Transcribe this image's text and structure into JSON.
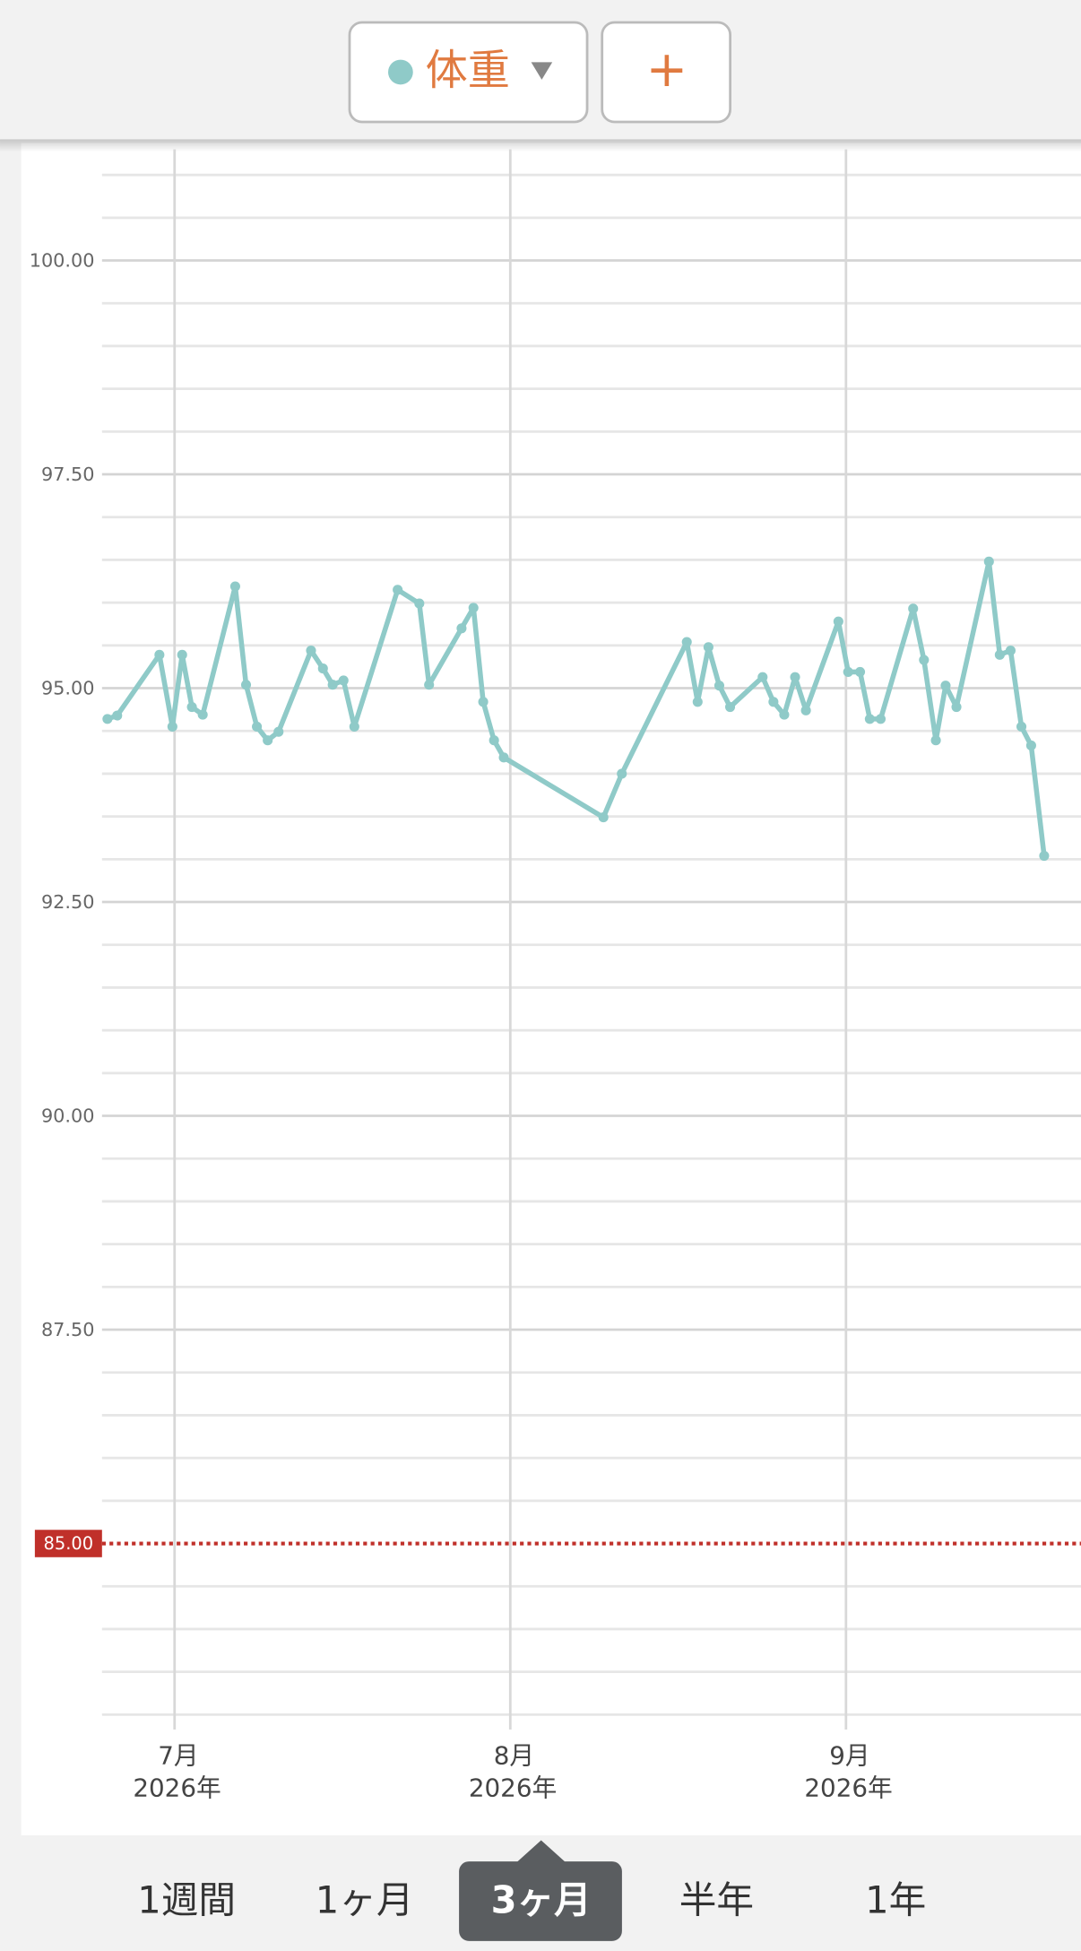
{
  "header": {
    "selector_label": "体重",
    "add_button": "+"
  },
  "chart_data": {
    "type": "line",
    "x": [
      -6.2,
      -5.3,
      -1.4,
      -0.2,
      0.7,
      1.6,
      2.6,
      5.6,
      6.6,
      7.6,
      8.6,
      9.6,
      12.6,
      13.7,
      14.6,
      15.6,
      16.6,
      20.6,
      22.6,
      23.5,
      26.5,
      27.6,
      28.5,
      29.5,
      30.4,
      39.6,
      41.3,
      47.3,
      48.3,
      49.3,
      50.3,
      51.3,
      54.3,
      55.3,
      56.3,
      57.3,
      58.3,
      61.3,
      62.2,
      63.3,
      64.2,
      65.2,
      68.2,
      69.2,
      70.3,
      71.2,
      72.2,
      75.2,
      76.2,
      77.2,
      78.2,
      79.1,
      80.3
    ],
    "series": [
      {
        "name": "体重",
        "color": "#8fcac8",
        "values": [
          94.64,
          94.68,
          95.39,
          94.55,
          95.39,
          94.78,
          94.69,
          96.19,
          95.04,
          94.55,
          94.39,
          94.49,
          95.44,
          95.23,
          95.04,
          95.09,
          94.55,
          96.15,
          95.99,
          95.04,
          95.7,
          95.94,
          94.84,
          94.39,
          94.19,
          93.49,
          94.0,
          95.54,
          94.84,
          95.48,
          95.03,
          94.78,
          95.13,
          94.84,
          94.69,
          95.13,
          94.74,
          95.78,
          95.19,
          95.19,
          94.64,
          94.64,
          95.93,
          95.33,
          94.39,
          95.03,
          94.78,
          96.48,
          95.39,
          95.44,
          94.55,
          94.33,
          93.04
        ]
      }
    ],
    "xlim": [
      -6.7,
      83.7
    ],
    "xticks": [
      {
        "value": 0,
        "label": "7月"
      },
      {
        "value": 31,
        "label": "8月"
      },
      {
        "value": 62,
        "label": "9月"
      }
    ],
    "xtick_years": [
      "2026年",
      "2026年",
      "2026年"
    ],
    "ylim": [
      83,
      101.3
    ],
    "yticks": [
      {
        "value": 87.5,
        "label": "87.50"
      },
      {
        "value": 90,
        "label": "90.00"
      },
      {
        "value": 92.5,
        "label": "92.50"
      },
      {
        "value": 95,
        "label": "95.00"
      },
      {
        "value": 97.5,
        "label": "97.50"
      },
      {
        "value": 100,
        "label": "100.00"
      }
    ],
    "minor_grid_step": 0.5,
    "grid": true,
    "target": {
      "value": 85,
      "label": "85.00",
      "color": "#c0302a"
    }
  },
  "period_tabs": [
    "1週間",
    "1ヶ月",
    "3ヶ月",
    "半年",
    "1年"
  ],
  "selected_period_index": 2
}
